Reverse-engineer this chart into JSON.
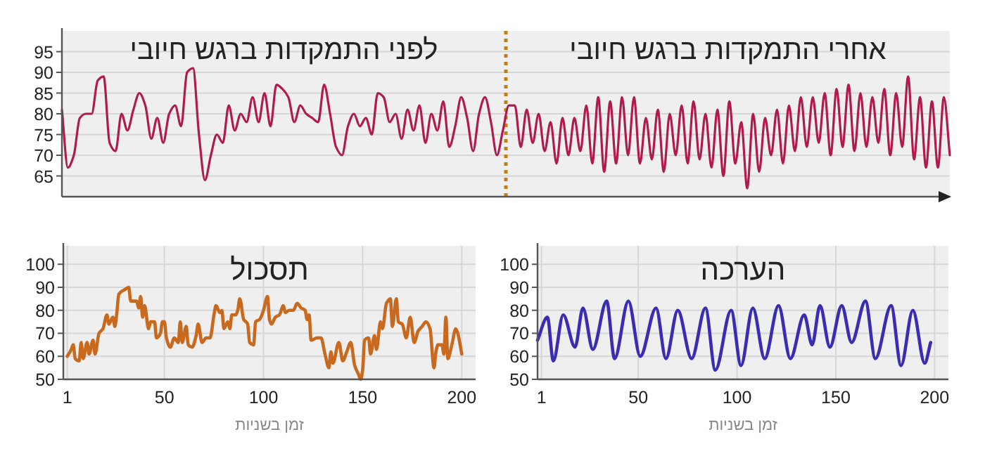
{
  "chart_data": [
    {
      "type": "line",
      "annotations": [
        "לפני התמקדות ברגש חיובי",
        "אחרי התמקדות ברגש חיובי"
      ],
      "categories": [
        null,
        null,
        null,
        null,
        null,
        null,
        null,
        null,
        null,
        null,
        null,
        null,
        null,
        null,
        null,
        null,
        null,
        null,
        null,
        null,
        null,
        null,
        null,
        null,
        null,
        null,
        null,
        null,
        null,
        null,
        null,
        null,
        null,
        null,
        null,
        null,
        null,
        null,
        null,
        null,
        null,
        null,
        null,
        null,
        null,
        null,
        null,
        null,
        null,
        null,
        null,
        null,
        null,
        null,
        null,
        null,
        null,
        null,
        null,
        null,
        null,
        null,
        null,
        null,
        null,
        null,
        null,
        null,
        null,
        null,
        null,
        null,
        null,
        null,
        null,
        null,
        null,
        null,
        null,
        null,
        null,
        null,
        null,
        null,
        null,
        null,
        null,
        null,
        null,
        null,
        null,
        null,
        null,
        null,
        null,
        null,
        null,
        null,
        null,
        null,
        null,
        null,
        null,
        null,
        null,
        null,
        null,
        null,
        null,
        null,
        null,
        null,
        null,
        null,
        null,
        null,
        null,
        null,
        null,
        null,
        null,
        null,
        null,
        null,
        null,
        null,
        null,
        null,
        null,
        null,
        null,
        null,
        null,
        null,
        null,
        null,
        null,
        null,
        null,
        null,
        null,
        null,
        null,
        null,
        null,
        null,
        null,
        null,
        null,
        null
      ],
      "series": [
        {
          "color": "#b01a4c",
          "values": [
            81,
            67,
            70,
            79,
            80,
            80,
            88,
            89,
            73,
            71,
            80,
            76,
            81,
            85,
            82,
            74,
            79,
            73,
            80,
            82,
            77,
            90,
            91,
            75,
            64,
            70,
            75,
            73,
            82,
            76,
            80,
            78,
            84,
            78,
            85,
            77,
            87,
            86,
            84,
            78,
            82,
            80,
            79,
            78,
            87,
            80,
            72,
            70,
            77,
            80,
            77,
            79,
            75,
            85,
            84,
            78,
            80,
            74,
            81,
            76,
            82,
            73,
            80,
            76,
            83,
            72,
            77,
            84,
            79,
            71,
            80,
            84,
            78,
            70,
            76,
            82,
            82,
            72,
            81,
            73,
            80,
            71,
            78,
            68,
            79,
            70,
            79,
            71,
            82,
            68,
            84,
            66,
            83,
            68,
            84,
            70,
            84,
            68,
            79,
            69,
            81,
            66,
            80,
            70,
            82,
            68,
            83,
            69,
            80,
            67,
            81,
            65,
            83,
            68,
            78,
            62,
            80,
            66,
            79,
            70,
            81,
            68,
            82,
            71,
            84,
            72,
            84,
            73,
            85,
            70,
            86,
            72,
            87,
            71,
            85,
            72,
            84,
            73,
            86,
            70,
            85,
            72,
            89,
            69,
            84,
            67,
            83,
            67,
            84,
            70
          ]
        }
      ],
      "ylim": [
        60,
        100
      ],
      "yticks": [
        65,
        70,
        75,
        80,
        85,
        90,
        95
      ],
      "grid": "y",
      "tick_labels": "y"
    },
    {
      "type": "line",
      "title": "תסכול",
      "xlabel": "זמן בשניות",
      "series": [
        {
          "color": "#c9691e",
          "x": [
            1,
            3,
            4,
            5,
            7,
            8,
            9,
            11,
            12,
            14,
            15,
            17,
            19,
            21,
            22,
            24,
            25,
            26,
            27,
            30,
            32,
            33,
            36,
            37,
            38,
            39,
            40,
            42,
            43,
            45,
            46,
            48,
            49,
            50,
            51,
            53,
            55,
            57,
            58,
            59,
            61,
            62,
            64,
            66,
            67,
            69,
            71,
            73,
            75,
            76,
            78,
            79,
            80,
            82,
            83,
            84,
            86,
            87,
            88,
            90,
            92,
            93,
            95,
            96,
            98,
            100,
            102,
            103,
            104,
            106,
            108,
            110,
            111,
            113,
            115,
            117,
            119,
            121,
            122,
            123,
            124,
            127,
            129,
            131,
            133,
            134,
            135,
            138,
            140,
            142,
            144,
            146,
            148,
            149,
            150,
            151,
            153,
            154,
            156,
            157,
            159,
            160,
            162,
            164,
            165,
            167,
            168,
            170,
            172,
            174,
            176,
            178,
            180,
            182,
            184,
            186,
            187,
            188,
            190,
            191,
            192,
            193,
            195,
            197,
            198,
            200
          ],
          "values": [
            60,
            63,
            65,
            59,
            58,
            66,
            59,
            66,
            61,
            67,
            61,
            70,
            72,
            78,
            74,
            77,
            73,
            79,
            87,
            89,
            90,
            84,
            84,
            81,
            86,
            77,
            82,
            72,
            75,
            75,
            68,
            70,
            75,
            75,
            68,
            64,
            68,
            66,
            75,
            66,
            73,
            65,
            64,
            69,
            74,
            66,
            68,
            68,
            78,
            82,
            79,
            80,
            72,
            75,
            72,
            78,
            78,
            80,
            85,
            76,
            74,
            66,
            65,
            75,
            76,
            80,
            86,
            76,
            74,
            77,
            78,
            82,
            79,
            80,
            80,
            83,
            81,
            80,
            76,
            78,
            67,
            68,
            68,
            61,
            55,
            62,
            57,
            66,
            58,
            62,
            66,
            56,
            52,
            50,
            54,
            67,
            68,
            61,
            69,
            63,
            75,
            72,
            83,
            85,
            73,
            85,
            75,
            74,
            68,
            77,
            66,
            71,
            73,
            75,
            72,
            55,
            62,
            65,
            65,
            61,
            77,
            59,
            65,
            72,
            70,
            61
          ]
        }
      ],
      "xlim": [
        -1,
        207
      ],
      "xticks": [
        1,
        50,
        100,
        150,
        200
      ],
      "ylim": [
        50,
        108
      ],
      "yticks": [
        50,
        60,
        70,
        80,
        90,
        100
      ],
      "grid": true
    },
    {
      "type": "line",
      "title": "הערכה",
      "xlabel": "זמן בשניות",
      "series": [
        {
          "color": "#3b2db3",
          "x": [
            -1,
            4,
            7,
            12,
            18,
            22,
            27,
            34,
            38,
            45,
            51,
            59,
            64,
            70,
            77,
            84,
            89,
            97,
            102,
            108,
            114,
            121,
            127,
            134,
            138,
            142,
            147,
            153,
            158,
            165,
            170,
            178,
            183,
            189,
            195,
            198
          ],
          "values": [
            67,
            77,
            58,
            78,
            64,
            81,
            63,
            84,
            59,
            84,
            60,
            81,
            59,
            80,
            59,
            81,
            54,
            80,
            56,
            81,
            59,
            82,
            59,
            78,
            65,
            82,
            64,
            82,
            66,
            84,
            59,
            82,
            56,
            80,
            57,
            66
          ]
        }
      ],
      "xlim": [
        -1,
        207
      ],
      "xticks": [
        1,
        50,
        100,
        150,
        200
      ],
      "ylim": [
        50,
        108
      ],
      "yticks": [
        50,
        60,
        70,
        80,
        90,
        100
      ],
      "grid": true
    }
  ]
}
